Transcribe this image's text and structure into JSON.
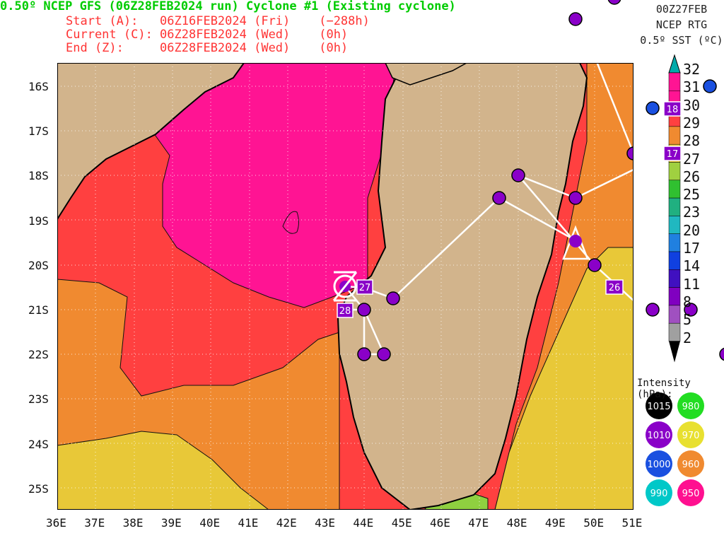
{
  "header": {
    "title": "0.50º NCEP GFS (06Z28FEB2024 run) Cyclone #1 (Existing cyclone)",
    "start": "Start (A):   06Z16FEB2024 (Fri)    (−288h)",
    "current": "Current (C): 06Z28FEB2024 (Wed)    (0h)",
    "end": "End (Z):     06Z28FEB2024 (Wed)    (0h)"
  },
  "right_header": {
    "time": "00Z27FEB",
    "source": "NCEP RTG",
    "sst": "0.5º SST (ºC)"
  },
  "axes": {
    "lat_labels": [
      "16S",
      "17S",
      "18S",
      "19S",
      "20S",
      "21S",
      "22S",
      "23S",
      "24S",
      "25S"
    ],
    "lon_labels": [
      "36E",
      "37E",
      "38E",
      "39E",
      "40E",
      "41E",
      "42E",
      "43E",
      "44E",
      "45E",
      "46E",
      "47E",
      "48E",
      "49E",
      "50E",
      "51E"
    ]
  },
  "colorbar": {
    "labels": [
      "32",
      "31",
      "30",
      "29",
      "28",
      "27",
      "26",
      "25",
      "23",
      "20",
      "17",
      "14",
      "11",
      "8",
      "5",
      "2"
    ],
    "colors": [
      "#00aaaa",
      "#ff1493",
      "#ff1493",
      "#ff4040",
      "#f08a30",
      "#e8c838",
      "#a0d040",
      "#30c030",
      "#20b080",
      "#20b8c0",
      "#2080e0",
      "#1040e0",
      "#4010c0",
      "#8000c0",
      "#a050c0",
      "#a0a0a0"
    ]
  },
  "intensity": {
    "title": "Intensity (hPa):",
    "items": [
      {
        "label": "1015",
        "color": "#000000"
      },
      {
        "label": "980",
        "color": "#22dd22"
      },
      {
        "label": "1010",
        "color": "#8a00c8"
      },
      {
        "label": "970",
        "color": "#e8e030"
      },
      {
        "label": "1000",
        "color": "#1a50e0"
      },
      {
        "label": "960",
        "color": "#f08a30"
      },
      {
        "label": "990",
        "color": "#00c8c8"
      },
      {
        "label": "950",
        "color": "#ff1090"
      }
    ]
  },
  "track_labels": {
    "t27": "27",
    "t28": "28",
    "t26": "26",
    "t18": "18",
    "t17": "17"
  }
}
